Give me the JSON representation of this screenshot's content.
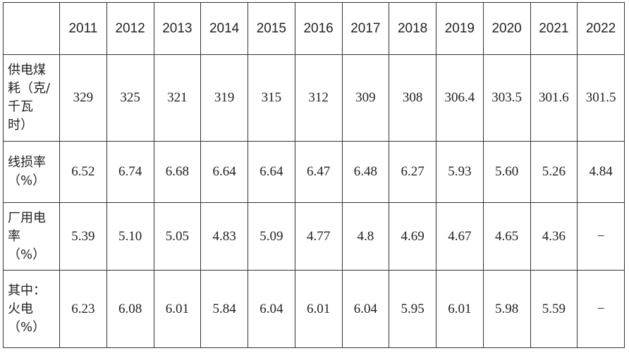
{
  "table": {
    "header": [
      "2011",
      "2012",
      "2013",
      "2014",
      "2015",
      "2016",
      "2017",
      "2018",
      "2019",
      "2020",
      "2021",
      "2022"
    ],
    "rows": [
      {
        "label": "供电煤耗（克/千瓦时）",
        "values": [
          "329",
          "325",
          "321",
          "319",
          "315",
          "312",
          "309",
          "308",
          "306.4",
          "303.5",
          "301.6",
          "301.5"
        ]
      },
      {
        "label": "线损率（%）",
        "values": [
          "6.52",
          "6.74",
          "6.68",
          "6.64",
          "6.64",
          "6.47",
          "6.48",
          "6.27",
          "5.93",
          "5.60",
          "5.26",
          "4.84"
        ]
      },
      {
        "label": "厂用电率（%）",
        "values": [
          "5.39",
          "5.10",
          "5.05",
          "4.83",
          "5.09",
          "4.77",
          "4.8",
          "4.69",
          "4.67",
          "4.65",
          "4.36",
          "−"
        ]
      },
      {
        "label": "其中：火电（%）",
        "values": [
          "6.23",
          "6.08",
          "6.01",
          "5.84",
          "6.04",
          "6.01",
          "6.04",
          "5.95",
          "6.01",
          "5.98",
          "5.59",
          "−"
        ]
      }
    ]
  }
}
